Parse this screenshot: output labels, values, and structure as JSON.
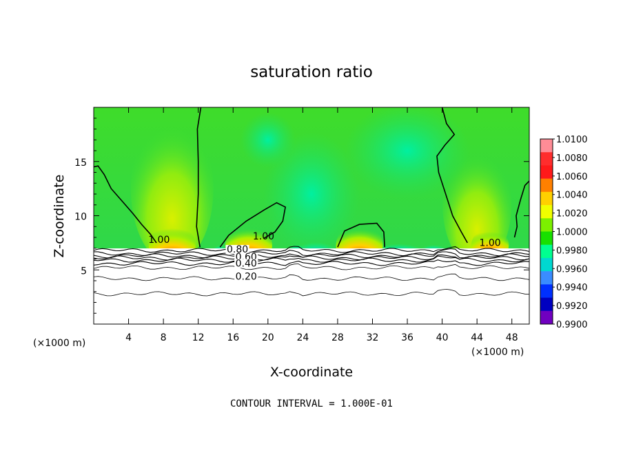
{
  "chart_data": {
    "type": "heatmap",
    "title": "saturation ratio",
    "xlabel": "X-coordinate",
    "ylabel": "Z-coordinate",
    "x_unit": "(×1000 m)",
    "x_unit_right": "(×1000 m)",
    "xlim": [
      0,
      50
    ],
    "ylim": [
      0,
      20
    ],
    "x_ticks": [
      4,
      8,
      12,
      16,
      20,
      24,
      28,
      32,
      36,
      40,
      44,
      48
    ],
    "y_ticks": [
      5,
      10,
      15
    ],
    "colorbar": {
      "levels": [
        "1.0100",
        "1.0080",
        "1.0060",
        "1.0040",
        "1.0020",
        "1.0000",
        "0.9980",
        "0.9960",
        "0.9940",
        "0.9920",
        "0.9900"
      ],
      "colors": [
        "#ff8c96",
        "#ff2d2d",
        "#ff1a1a",
        "#ff8000",
        "#ffd000",
        "#f0ff00",
        "#7cf000",
        "#18e000",
        "#00ff90",
        "#00d8d0",
        "#3a8cff",
        "#0030ff",
        "#0000c0",
        "#7000c0"
      ]
    },
    "contour_labels": [
      "1.00",
      "0.80",
      "0.60",
      "0.40",
      "0.20"
    ],
    "contour_label_positions": [
      {
        "label": "1.00",
        "x": 7.5,
        "y": 7.5
      },
      {
        "label": "1.00",
        "x": 19.5,
        "y": 7.8
      },
      {
        "label": "1.00",
        "x": 45.5,
        "y": 7.2
      },
      {
        "label": "0.80",
        "x": 16.5,
        "y": 6.6
      },
      {
        "label": "0.60",
        "x": 17.5,
        "y": 5.9
      },
      {
        "label": "0.40",
        "x": 17.5,
        "y": 5.3
      },
      {
        "label": "0.20",
        "x": 17.5,
        "y": 4.1
      }
    ],
    "contour_lines_y": [
      6.8,
      6.5,
      6.3,
      6.1,
      5.9,
      5.6,
      5.2,
      4.2,
      2.8
    ],
    "supersaturation_cores": [
      {
        "x": 9.0,
        "z": 7.3,
        "intensity": 1.0
      },
      {
        "x": 17.8,
        "z": 7.3,
        "intensity": 1.0
      },
      {
        "x": 30.5,
        "z": 7.3,
        "intensity": 1.0
      },
      {
        "x": 45.5,
        "z": 7.3,
        "intensity": 0.8
      }
    ],
    "contour_interval": "CONTOUR INTERVAL = 1.000E-01"
  }
}
